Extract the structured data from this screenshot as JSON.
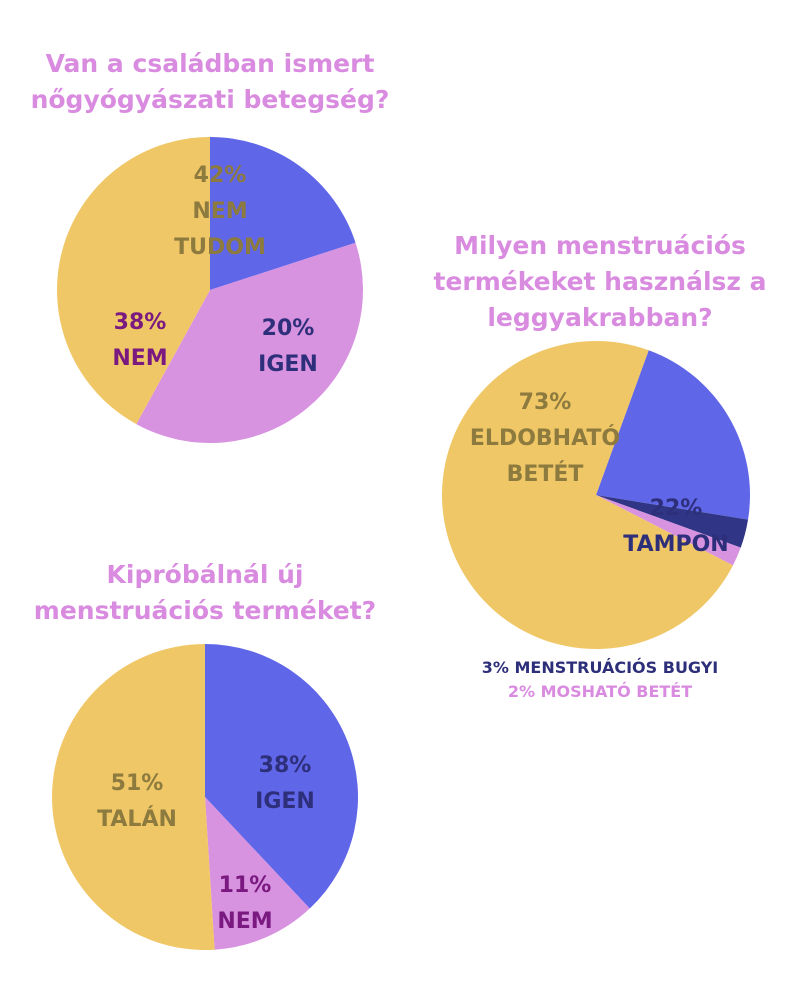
{
  "colors": {
    "yellow": "#F0C766",
    "violet": "#D792E0",
    "blue": "#6066E8",
    "navy": "#303585",
    "title": "#D98BE0",
    "label_yellow": "#8C7A3E",
    "label_violet": "#7A1A80",
    "label_blue": "#2E2F7A",
    "label_mosh": "#D98BE0"
  },
  "chart_data": [
    {
      "type": "pie",
      "title": [
        "Van a családban ismert",
        "nőgyógyászati betegség?"
      ],
      "start_angle_deg": 0,
      "direction": "clockwise",
      "slices": [
        {
          "name": "IGEN",
          "value": 20,
          "lines": [
            "20%",
            "IGEN"
          ],
          "color": "#6066E8",
          "label_color": "#2E2F7A"
        },
        {
          "name": "NEM",
          "value": 38,
          "lines": [
            "38%",
            "NEM"
          ],
          "color": "#D792E0",
          "label_color": "#7A1A80"
        },
        {
          "name": "NEM TUDOM",
          "value": 42,
          "lines": [
            "42%",
            "NEM",
            "TUDOM"
          ],
          "color": "#F0C766",
          "label_color": "#8C7A3E"
        }
      ]
    },
    {
      "type": "pie",
      "title": [
        "Milyen menstruációs",
        "termékeket használsz a",
        "leggyakrabban?"
      ],
      "start_angle_deg": 20,
      "direction": "clockwise",
      "slices": [
        {
          "name": "TAMPON",
          "value": 22,
          "lines": [
            "22%",
            "TAMPON"
          ],
          "color": "#6066E8",
          "label_color": "#2E2F7A"
        },
        {
          "name": "MENSTRUÁCIÓS BUGYI",
          "value": 3,
          "lines": [],
          "color": "#303585",
          "label_color": "#303585"
        },
        {
          "name": "MOSHATÓ BETÉT",
          "value": 2,
          "lines": [],
          "color": "#D792E0",
          "label_color": "#D98BE0"
        },
        {
          "name": "ELDOBHATÓ BETÉT",
          "value": 73,
          "lines": [
            "73%",
            "ELDOBHATÓ",
            "BETÉT"
          ],
          "color": "#F0C766",
          "label_color": "#8C7A3E"
        }
      ],
      "legend": [
        "3% MENSTRUÁCIÓS BUGYI",
        "2% MOSHATÓ BETÉT"
      ]
    },
    {
      "type": "pie",
      "title": [
        "Kipróbálnál új",
        "menstruációs terméket?"
      ],
      "start_angle_deg": 0,
      "direction": "clockwise",
      "slices": [
        {
          "name": "IGEN",
          "value": 38,
          "lines": [
            "38%",
            "IGEN"
          ],
          "color": "#6066E8",
          "label_color": "#2E2F7A"
        },
        {
          "name": "NEM",
          "value": 11,
          "lines": [
            "11%",
            "NEM"
          ],
          "color": "#D792E0",
          "label_color": "#7A1A80"
        },
        {
          "name": "TALÁN",
          "value": 51,
          "lines": [
            "51%",
            "TALÁN"
          ],
          "color": "#F0C766",
          "label_color": "#8C7A3E"
        }
      ]
    }
  ]
}
